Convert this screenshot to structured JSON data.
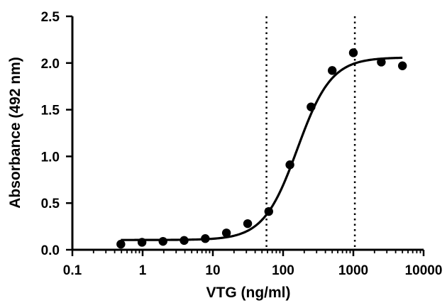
{
  "chart_data": {
    "type": "scatter",
    "title": "",
    "xlabel": "VTG (ng/ml)",
    "ylabel": "Absorbance (492 nm)",
    "xscale": "log",
    "xlim": [
      0.1,
      10000
    ],
    "ylim": [
      0.0,
      2.5
    ],
    "x_ticks": [
      "0.1",
      "1",
      "10",
      "100",
      "1000",
      "10000"
    ],
    "y_ticks": [
      "0.0",
      "0.5",
      "1.0",
      "1.5",
      "2.0",
      "2.5"
    ],
    "grid": false,
    "legend": "none",
    "series": [
      {
        "points": [
          {
            "x": 0.49,
            "y": 0.06
          },
          {
            "x": 0.98,
            "y": 0.08
          },
          {
            "x": 1.95,
            "y": 0.09
          },
          {
            "x": 3.9,
            "y": 0.1
          },
          {
            "x": 7.8,
            "y": 0.12
          },
          {
            "x": 15.6,
            "y": 0.18
          },
          {
            "x": 31.3,
            "y": 0.28
          },
          {
            "x": 62.5,
            "y": 0.41
          },
          {
            "x": 125,
            "y": 0.91
          },
          {
            "x": 250,
            "y": 1.53
          },
          {
            "x": 500,
            "y": 1.92
          },
          {
            "x": 1000,
            "y": 2.11
          },
          {
            "x": 2500,
            "y": 2.01
          },
          {
            "x": 5000,
            "y": 1.97
          }
        ],
        "fit_curve": {
          "model": "four-parameter logistic",
          "bottom": 0.105,
          "top": 2.06,
          "ec50": 160,
          "hill": 1.8,
          "x_range": [
            0.49,
            5000
          ]
        }
      }
    ],
    "reference_lines": [
      {
        "orientation": "vertical",
        "x": 58,
        "style": "dotted"
      },
      {
        "orientation": "vertical",
        "x": 1050,
        "style": "dotted"
      }
    ],
    "colors": {
      "marker": "#000000",
      "line": "#000000",
      "axis": "#000000"
    }
  }
}
